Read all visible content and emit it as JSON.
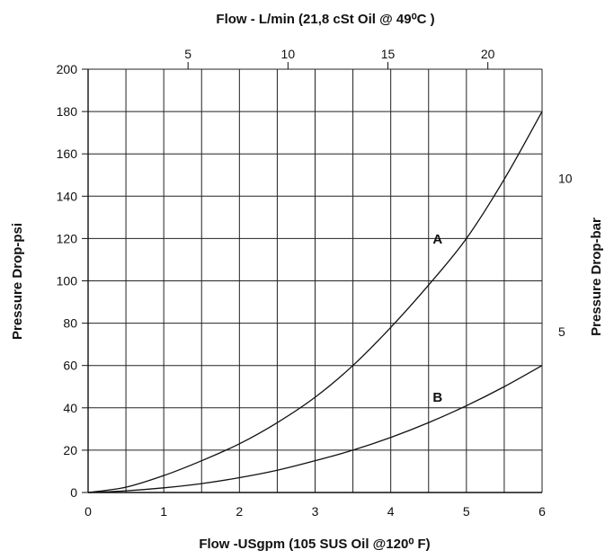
{
  "chart_data": {
    "type": "line",
    "title": "Flow - L/min (21,8 cSt Oil @ 49⁰C )",
    "xlabel": "Flow -USgpm (105 SUS Oil @120⁰ F)",
    "ylabel": "Pressure Drop-psi",
    "y2label": "Pressure Drop-bar",
    "xlim": [
      0,
      6
    ],
    "ylim": [
      0,
      200
    ],
    "xticks": [
      "0",
      "1",
      "2",
      "3",
      "4",
      "5",
      "6"
    ],
    "yticks": [
      "0",
      "20",
      "40",
      "60",
      "80",
      "100",
      "120",
      "140",
      "160",
      "180",
      "200"
    ],
    "x2ticks": [
      {
        "value": 5,
        "label": "5"
      },
      {
        "value": 10,
        "label": "10"
      },
      {
        "value": 15,
        "label": "15"
      },
      {
        "value": 20,
        "label": "20"
      }
    ],
    "y2ticks": [
      {
        "value": 5,
        "label": "5"
      },
      {
        "value": 10,
        "label": "10"
      }
    ],
    "grid": true,
    "series": [
      {
        "name": "A",
        "x": [
          0,
          0.5,
          1,
          1.5,
          2,
          2.5,
          3,
          3.5,
          4,
          4.5,
          5,
          5.5,
          6
        ],
        "y": [
          0,
          2.5,
          8,
          15,
          23,
          33,
          45,
          60,
          78,
          98,
          120,
          148,
          180
        ]
      },
      {
        "name": "B",
        "x": [
          0,
          0.5,
          1,
          1.5,
          2,
          2.5,
          3,
          3.5,
          4,
          4.5,
          5,
          5.5,
          6
        ],
        "y": [
          0,
          0.8,
          2.2,
          4.2,
          7,
          10.5,
          15,
          20,
          26,
          33,
          41,
          50,
          60
        ]
      }
    ]
  }
}
